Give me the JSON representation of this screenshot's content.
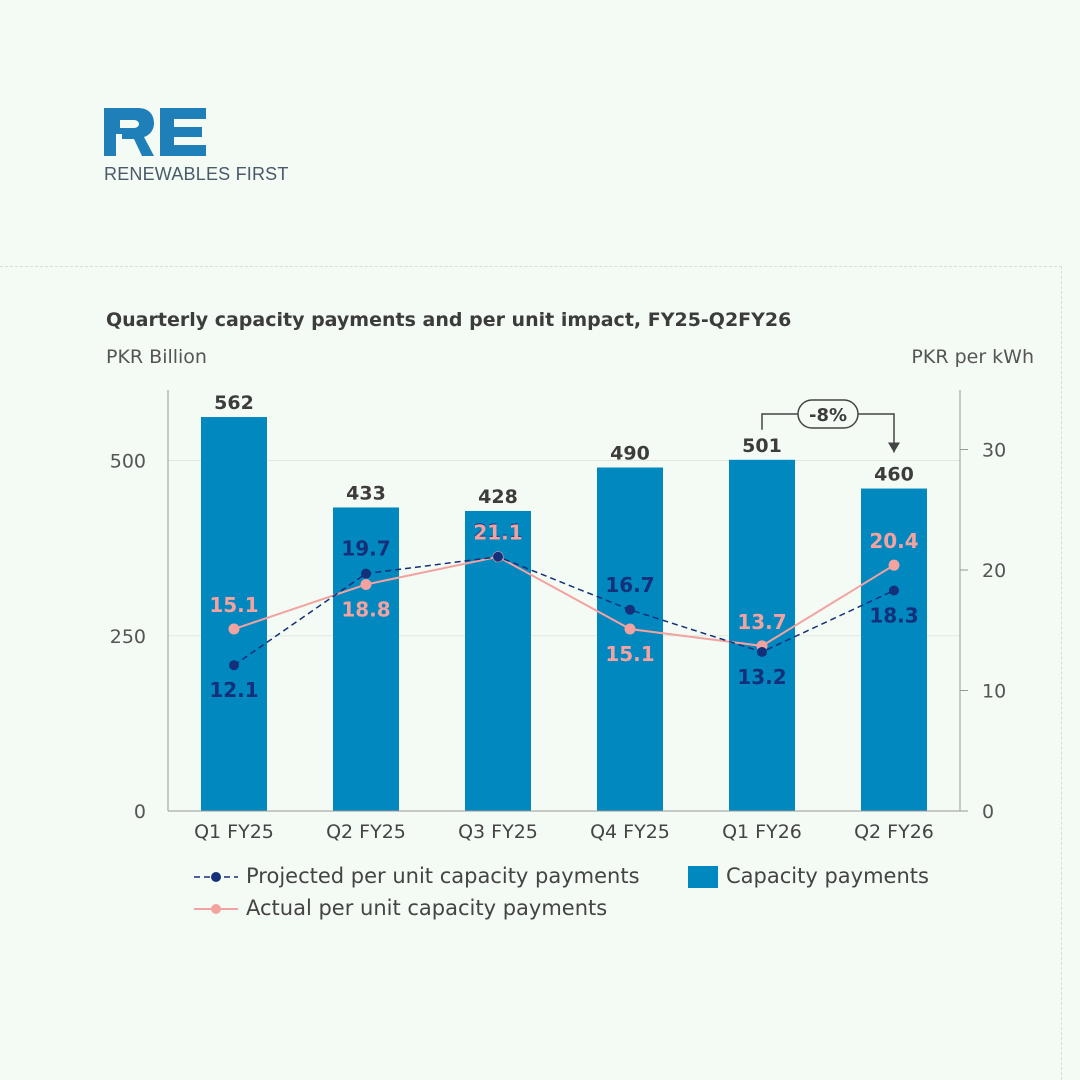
{
  "brand": {
    "logo_text": "RE",
    "name": "RENEWABLES FIRST",
    "color": "#1f7fb8"
  },
  "chart_data": {
    "type": "bar",
    "title": "Quarterly capacity payments and per unit impact, FY25-Q2FY26",
    "ylabel": "PKR Billion",
    "y2label": "PKR per kWh",
    "categories": [
      "Q1 FY25",
      "Q2 FY25",
      "Q3 FY25",
      "Q4 FY25",
      "Q1 FY26",
      "Q2 FY26"
    ],
    "ylim": [
      0,
      600
    ],
    "y2lim": [
      0,
      35
    ],
    "yticks": [
      0,
      250,
      500
    ],
    "y2ticks": [
      0,
      10,
      20,
      30
    ],
    "grid": true,
    "legend_position": "bottom",
    "series": [
      {
        "name": "Capacity payments",
        "type": "bar",
        "axis": "left",
        "color": "#0088bf",
        "values": [
          562,
          433,
          428,
          490,
          501,
          460
        ]
      },
      {
        "name": "Projected per unit capacity payments",
        "type": "line",
        "style": "dashed",
        "axis": "right",
        "color": "#15307a",
        "values": [
          12.1,
          19.7,
          21.1,
          16.7,
          13.2,
          18.3
        ],
        "labels": [
          "12.1",
          "19.7",
          "21.1",
          "16.7",
          "13.2",
          "18.3"
        ]
      },
      {
        "name": "Actual per unit capacity payments",
        "type": "line",
        "style": "solid",
        "axis": "right",
        "color": "#f2a3a0",
        "values": [
          15.1,
          18.8,
          21.1,
          15.1,
          13.7,
          20.4
        ],
        "labels": [
          "15.1",
          "18.8",
          "21.1",
          "15.1",
          "13.7",
          "20.4"
        ]
      }
    ],
    "annotation": {
      "text": "-8%",
      "from": "Q1 FY26",
      "to": "Q2 FY26"
    }
  }
}
